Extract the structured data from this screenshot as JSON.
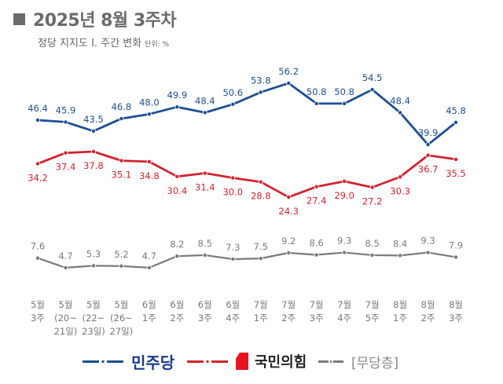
{
  "header": {
    "title": "2025년 8월 3주차",
    "subtitle": "정당 지지도 Ⅰ. 주간 변화",
    "unit": "단위: %"
  },
  "chart_data": {
    "type": "line",
    "title": "2025년 8월 3주차",
    "subtitle": "정당 지지도 Ⅰ. 주간 변화",
    "unit": "%",
    "categories": [
      [
        "5월",
        "3주"
      ],
      [
        "5월",
        "(20~",
        "21일)"
      ],
      [
        "5월",
        "(22~",
        "23일)"
      ],
      [
        "5월",
        "(26~",
        "27일)"
      ],
      [
        "6월",
        "1주"
      ],
      [
        "6월",
        "2주"
      ],
      [
        "6월",
        "3주"
      ],
      [
        "6월",
        "4주"
      ],
      [
        "7월",
        "1주"
      ],
      [
        "7월",
        "2주"
      ],
      [
        "7월",
        "3주"
      ],
      [
        "7월",
        "4주"
      ],
      [
        "7월",
        "5주"
      ],
      [
        "8월",
        "1주"
      ],
      [
        "8월",
        "2주"
      ],
      [
        "8월",
        "3주"
      ]
    ],
    "series": [
      {
        "name": "민주당",
        "color": "#1d4f91",
        "label_position": "above",
        "values": [
          46.4,
          45.9,
          43.5,
          46.8,
          48.0,
          49.9,
          48.4,
          50.6,
          53.8,
          56.2,
          50.8,
          50.8,
          54.5,
          48.4,
          39.9,
          45.8
        ]
      },
      {
        "name": "국민의힘",
        "color": "#d1232f",
        "label_position": "below",
        "values": [
          34.2,
          37.4,
          37.8,
          35.1,
          34.8,
          30.4,
          31.4,
          30.0,
          28.8,
          24.3,
          27.4,
          29.0,
          27.2,
          30.3,
          36.7,
          35.5
        ]
      },
      {
        "name": "[무당층]",
        "color": "#7a7a7a",
        "label_position": "above",
        "values": [
          7.6,
          4.7,
          5.3,
          5.2,
          4.7,
          8.2,
          8.5,
          7.3,
          7.5,
          9.2,
          8.6,
          9.3,
          8.5,
          8.4,
          9.3,
          7.9
        ]
      }
    ],
    "legend_position": "bottom",
    "grid": false,
    "line_style": "dash-dot"
  }
}
